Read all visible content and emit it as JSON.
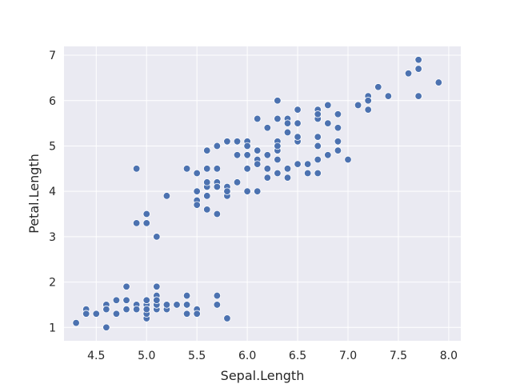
{
  "chart_data": {
    "type": "scatter",
    "title": "",
    "xlabel": "Sepal.Length",
    "ylabel": "Petal.Length",
    "xlim": [
      4.18,
      8.12
    ],
    "ylim": [
      0.705,
      7.195
    ],
    "xticks": [
      4.5,
      5.0,
      5.5,
      6.0,
      6.5,
      7.0,
      7.5,
      8.0
    ],
    "xtick_labels": [
      "4.5",
      "5.0",
      "5.5",
      "6.0",
      "6.5",
      "7.0",
      "7.5",
      "8.0"
    ],
    "yticks": [
      1,
      2,
      3,
      4,
      5,
      6,
      7
    ],
    "ytick_labels": [
      "1",
      "2",
      "3",
      "4",
      "5",
      "6",
      "7"
    ],
    "grid": true,
    "legend": "none",
    "colors": {
      "background": "#eaeaf2",
      "grid": "#ffffff",
      "marker": "#4c72b0",
      "marker_edge": "#ffffff"
    },
    "x": [
      5.1,
      4.9,
      4.7,
      4.6,
      5.0,
      5.4,
      4.6,
      5.0,
      4.4,
      4.9,
      5.4,
      4.8,
      4.8,
      4.3,
      5.8,
      5.7,
      5.4,
      5.1,
      5.7,
      5.1,
      5.4,
      5.1,
      4.6,
      5.1,
      4.8,
      5.0,
      5.0,
      5.2,
      5.2,
      4.7,
      4.8,
      5.4,
      5.2,
      5.5,
      4.9,
      5.0,
      5.5,
      4.9,
      4.4,
      5.1,
      5.0,
      4.5,
      4.4,
      5.0,
      5.1,
      4.8,
      5.1,
      4.6,
      5.3,
      5.0,
      7.0,
      6.4,
      6.9,
      5.5,
      6.5,
      5.7,
      6.3,
      4.9,
      6.6,
      5.2,
      5.0,
      5.9,
      6.0,
      6.1,
      5.6,
      6.7,
      5.6,
      5.8,
      6.2,
      5.6,
      5.9,
      6.1,
      6.3,
      6.1,
      6.4,
      6.6,
      6.8,
      6.7,
      6.0,
      5.7,
      5.5,
      5.5,
      5.8,
      6.0,
      5.4,
      6.0,
      6.7,
      6.3,
      5.6,
      5.5,
      5.5,
      6.1,
      5.8,
      5.0,
      5.6,
      5.7,
      5.7,
      6.2,
      5.1,
      5.7,
      6.3,
      5.8,
      7.1,
      6.3,
      6.5,
      7.6,
      4.9,
      7.3,
      6.7,
      7.2,
      6.5,
      6.4,
      6.8,
      5.7,
      5.8,
      6.4,
      6.5,
      7.7,
      7.7,
      6.0,
      6.9,
      5.6,
      7.7,
      6.3,
      6.7,
      7.2,
      6.2,
      6.1,
      6.4,
      7.2,
      7.4,
      7.9,
      6.4,
      6.3,
      6.1,
      7.7,
      6.3,
      6.4,
      6.0,
      6.9,
      6.7,
      6.9,
      5.8,
      6.8,
      6.7,
      6.7,
      6.3,
      6.5,
      6.2,
      5.9
    ],
    "y": [
      1.4,
      1.4,
      1.3,
      1.5,
      1.4,
      1.7,
      1.4,
      1.5,
      1.4,
      1.5,
      1.5,
      1.6,
      1.4,
      1.1,
      1.2,
      1.5,
      1.3,
      1.4,
      1.7,
      1.5,
      1.7,
      1.5,
      1.0,
      1.7,
      1.9,
      1.6,
      1.6,
      1.5,
      1.4,
      1.6,
      1.6,
      1.5,
      1.5,
      1.4,
      1.5,
      1.2,
      1.3,
      1.4,
      1.3,
      1.5,
      1.3,
      1.3,
      1.3,
      1.6,
      1.9,
      1.4,
      1.6,
      1.4,
      1.5,
      1.4,
      4.7,
      4.5,
      4.9,
      4.0,
      4.6,
      4.5,
      4.7,
      3.3,
      4.6,
      3.9,
      3.5,
      4.2,
      4.0,
      4.7,
      3.6,
      4.4,
      4.5,
      4.1,
      4.5,
      3.9,
      4.8,
      4.0,
      4.9,
      4.7,
      4.3,
      4.4,
      4.8,
      5.0,
      4.5,
      3.5,
      3.8,
      3.7,
      3.9,
      5.1,
      4.5,
      4.5,
      4.7,
      4.4,
      4.1,
      4.0,
      4.4,
      4.6,
      4.0,
      3.3,
      4.2,
      4.2,
      4.2,
      4.3,
      3.0,
      4.1,
      6.0,
      5.1,
      5.9,
      5.6,
      5.8,
      6.6,
      4.5,
      6.3,
      5.8,
      6.1,
      5.1,
      5.3,
      5.5,
      5.0,
      5.1,
      5.3,
      5.5,
      6.7,
      6.9,
      5.0,
      5.7,
      4.9,
      6.7,
      4.9,
      5.7,
      6.0,
      4.8,
      4.9,
      5.6,
      5.8,
      6.1,
      6.4,
      5.6,
      5.1,
      5.6,
      6.1,
      5.6,
      5.5,
      4.8,
      5.4,
      5.6,
      5.1,
      5.1,
      5.9,
      5.7,
      5.2,
      5.0,
      5.2,
      5.4,
      5.1
    ]
  }
}
